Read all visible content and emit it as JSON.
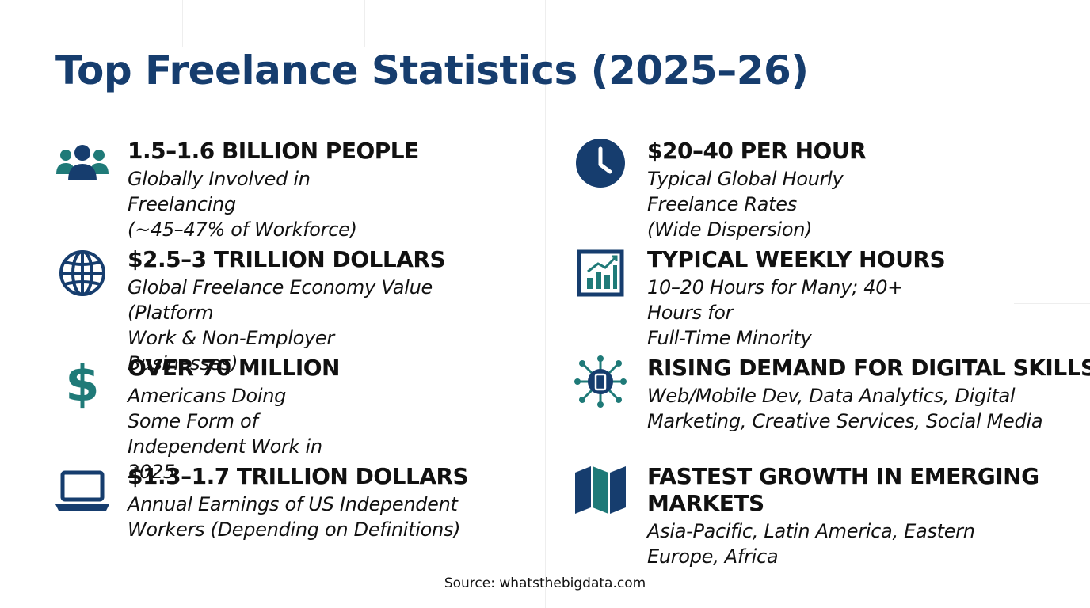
{
  "title": "Top Freelance Statistics (2025–26)",
  "source": "Source: whatsthebigdata.com",
  "colors": {
    "navy": "#163d6e",
    "teal": "#1f7a78",
    "text": "#111111"
  },
  "left_stats": [
    {
      "icon": "people-group-icon",
      "heading": "1.5–1.6 BILLION PEOPLE",
      "line1": "Globally Involved in Freelancing",
      "line2": "(~45–47% of Workforce)"
    },
    {
      "icon": "globe-icon",
      "heading": "$2.5–3 TRILLION DOLLARS",
      "line1": "Global Freelance Economy Value (Platform",
      "line2": "Work & Non-Employer Businesses)"
    },
    {
      "icon": "dollar-sign-icon",
      "heading": "OVER 70 MILLION",
      "line1": "Americans Doing Some Form of",
      "line2": "Independent Work in 2025"
    },
    {
      "icon": "laptop-icon",
      "heading": "$1.3–1.7 TRILLION DOLLARS",
      "line1": "Annual Earnings of US Independent",
      "line2": "Workers (Depending on Definitions)"
    }
  ],
  "right_stats": [
    {
      "icon": "clock-icon",
      "heading": "$20–40 PER HOUR",
      "line1": "Typical Global Hourly Freelance Rates",
      "line2": "(Wide Dispersion)"
    },
    {
      "icon": "bar-chart-icon",
      "heading": "TYPICAL WEEKLY HOURS",
      "line1": "10–20 Hours for Many; 40+ Hours for",
      "line2": "Full-Time Minority"
    },
    {
      "icon": "network-device-icon",
      "heading": "RISING DEMAND FOR DIGITAL SKILLS",
      "line1": "Web/Mobile Dev, Data Analytics, Digital",
      "line2": "Marketing, Creative Services, Social Media"
    },
    {
      "icon": "folded-map-icon",
      "heading": "FASTEST GROWTH IN EMERGING MARKETS",
      "line1": "Asia-Pacific, Latin America, Eastern",
      "line2": "Europe, Africa"
    }
  ]
}
